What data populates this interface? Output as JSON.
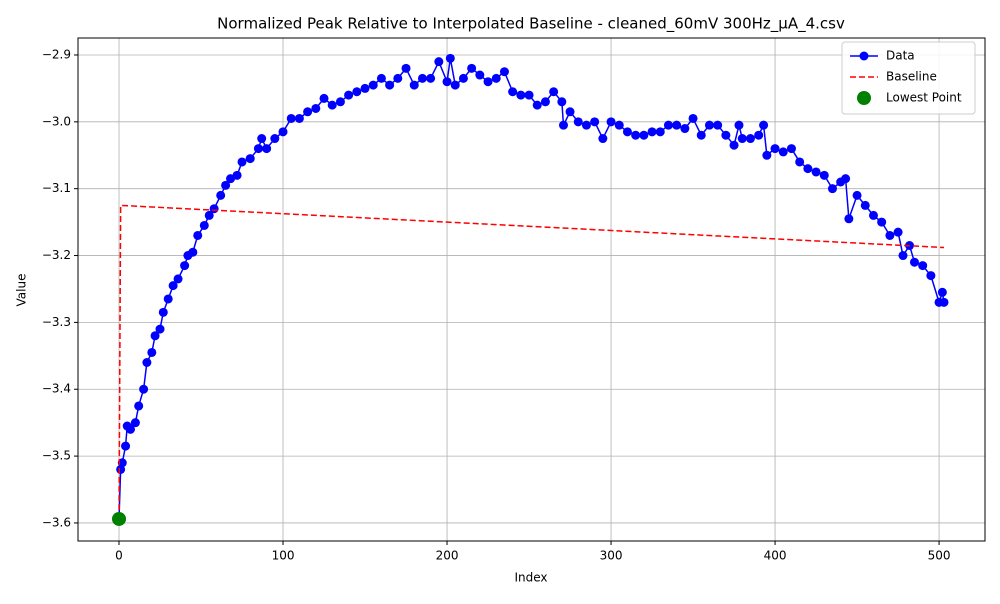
{
  "chart_data": {
    "type": "line",
    "title": "Normalized Peak Relative to Interpolated Baseline - cleaned_60mV 300Hz_μA_4.csv",
    "x_label": "Index",
    "y_label": "Value",
    "xlim": [
      -25,
      528
    ],
    "xticks": [
      0,
      100,
      200,
      300,
      400,
      500
    ],
    "ylim": [
      -3.627,
      -2.8746
    ],
    "yticks": [
      {
        "value": -3.6,
        "label": "−3.6"
      },
      {
        "value": -3.5,
        "label": "−3.5"
      },
      {
        "value": -3.4,
        "label": "−3.4"
      },
      {
        "value": -3.3,
        "label": "−3.3"
      },
      {
        "value": -3.2,
        "label": "−3.2"
      },
      {
        "value": -3.1,
        "label": "−3.1"
      },
      {
        "value": -3.0,
        "label": "−3.0"
      },
      {
        "value": -2.9,
        "label": "−2.9"
      }
    ],
    "grid": true,
    "legend": "upper right",
    "series": [
      {
        "name": "Data",
        "color": "#0000ff",
        "kind": "line",
        "linestyle": "solid",
        "marker": true,
        "x": [
          0,
          1,
          2,
          4,
          5,
          7,
          10,
          12,
          15,
          17,
          20,
          22,
          25,
          27,
          30,
          33,
          36,
          40,
          42,
          45,
          48,
          52,
          55,
          58,
          62,
          65,
          68,
          72,
          75,
          80,
          85,
          87,
          90,
          95,
          100,
          105,
          110,
          115,
          120,
          125,
          130,
          135,
          140,
          145,
          150,
          155,
          160,
          165,
          170,
          175,
          180,
          185,
          190,
          195,
          200,
          202,
          205,
          210,
          215,
          220,
          225,
          230,
          235,
          240,
          245,
          250,
          255,
          260,
          265,
          270,
          271,
          275,
          280,
          285,
          290,
          295,
          300,
          305,
          310,
          315,
          320,
          325,
          330,
          335,
          340,
          345,
          350,
          355,
          360,
          365,
          370,
          375,
          378,
          380,
          385,
          390,
          393,
          395,
          400,
          405,
          410,
          415,
          420,
          425,
          430,
          435,
          440,
          443,
          445,
          450,
          455,
          460,
          465,
          470,
          475,
          478,
          482,
          485,
          490,
          495,
          500,
          502,
          503
        ],
        "values": [
          -3.594,
          -3.52,
          -3.51,
          -3.485,
          -3.455,
          -3.46,
          -3.45,
          -3.425,
          -3.4,
          -3.36,
          -3.345,
          -3.32,
          -3.31,
          -3.285,
          -3.265,
          -3.245,
          -3.235,
          -3.215,
          -3.2,
          -3.195,
          -3.17,
          -3.155,
          -3.14,
          -3.13,
          -3.11,
          -3.095,
          -3.085,
          -3.08,
          -3.06,
          -3.055,
          -3.04,
          -3.025,
          -3.04,
          -3.025,
          -3.015,
          -2.995,
          -2.995,
          -2.985,
          -2.98,
          -2.965,
          -2.975,
          -2.97,
          -2.96,
          -2.955,
          -2.95,
          -2.945,
          -2.935,
          -2.945,
          -2.935,
          -2.92,
          -2.945,
          -2.935,
          -2.935,
          -2.91,
          -2.94,
          -2.905,
          -2.945,
          -2.935,
          -2.92,
          -2.93,
          -2.94,
          -2.935,
          -2.925,
          -2.955,
          -2.96,
          -2.96,
          -2.975,
          -2.97,
          -2.955,
          -2.97,
          -3.005,
          -2.985,
          -3.0,
          -3.005,
          -3.0,
          -3.025,
          -3.0,
          -3.005,
          -3.015,
          -3.02,
          -3.02,
          -3.015,
          -3.015,
          -3.005,
          -3.005,
          -3.01,
          -2.995,
          -3.02,
          -3.005,
          -3.005,
          -3.02,
          -3.035,
          -3.005,
          -3.025,
          -3.025,
          -3.02,
          -3.005,
          -3.05,
          -3.04,
          -3.045,
          -3.04,
          -3.06,
          -3.07,
          -3.075,
          -3.08,
          -3.1,
          -3.09,
          -3.085,
          -3.145,
          -3.11,
          -3.125,
          -3.14,
          -3.15,
          -3.17,
          -3.165,
          -3.2,
          -3.185,
          -3.21,
          -3.215,
          -3.23,
          -3.27,
          -3.255,
          -3.27
        ]
      },
      {
        "name": "Baseline",
        "color": "#ff0000",
        "kind": "line",
        "linestyle": "dashed",
        "marker": false,
        "x": [
          0,
          1,
          503
        ],
        "values": [
          -3.594,
          -3.125,
          -3.188
        ]
      },
      {
        "name": "Lowest Point",
        "color": "#008000",
        "kind": "scatter",
        "x": [
          0
        ],
        "values": [
          -3.594
        ]
      }
    ]
  }
}
